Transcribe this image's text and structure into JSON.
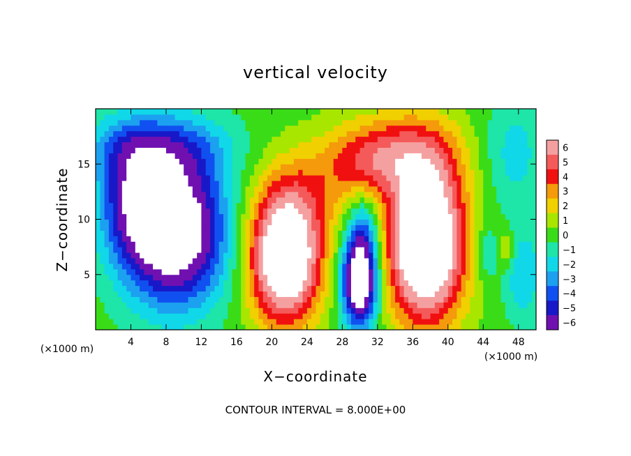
{
  "chart_data": {
    "type": "heatmap",
    "title": "vertical velocity",
    "xlabel": "X−coordinate",
    "ylabel": "Z−coordinate",
    "x_unit_left": "(×1000 m)",
    "x_unit_right": "(×1000 m)",
    "footer": "CONTOUR INTERVAL = 8.000E+00",
    "xlim": [
      0,
      50
    ],
    "ylim": [
      0,
      20
    ],
    "x_ticks": [
      4,
      8,
      12,
      16,
      20,
      24,
      28,
      32,
      36,
      40,
      44,
      48
    ],
    "x_tick_labels": [
      "4",
      "8",
      "12",
      "16",
      "20",
      "24",
      "28",
      "32",
      "36",
      "40",
      "44",
      "48"
    ],
    "y_ticks": [
      5,
      10,
      15
    ],
    "y_tick_labels": [
      "5",
      "10",
      "15"
    ],
    "contour_interval": 8.0,
    "colorbar": {
      "levels": [
        6,
        5,
        4,
        3,
        2,
        1,
        0,
        -1,
        -2,
        -3,
        -4,
        -5,
        -6
      ],
      "labels": [
        "6",
        "5",
        "4",
        "3",
        "2",
        "1",
        "0",
        "−1",
        "−2",
        "−3",
        "−4",
        "−5",
        "−6"
      ],
      "colors": [
        "#f5a0a0",
        "#f55a5a",
        "#f01010",
        "#f59a0a",
        "#f0d000",
        "#a8e600",
        "#3adc18",
        "#1ee5a8",
        "#10d8e8",
        "#1ca0f0",
        "#1050f0",
        "#1818c8",
        "#7010b0"
      ],
      "saturated_high": "#ffffff",
      "saturated_low": "#ffffff",
      "background": "#44dd22"
    },
    "features": [
      {
        "sign": "down",
        "x": 9.0,
        "z": 9.0,
        "sx": 4.0,
        "sz": 4.6,
        "amp": -9.5
      },
      {
        "sign": "down",
        "x": 4.0,
        "z": 12.0,
        "sx": 2.6,
        "sz": 4.0,
        "amp": -4.0
      },
      {
        "sign": "down",
        "x": 7.0,
        "z": 16.5,
        "sx": 5.5,
        "sz": 2.2,
        "amp": -3.6
      },
      {
        "sign": "up",
        "x": 21.5,
        "z": 6.5,
        "sx": 2.8,
        "sz": 4.0,
        "amp": 10.5
      },
      {
        "sign": "up",
        "x": 24.0,
        "z": 12.5,
        "sx": 4.0,
        "sz": 3.0,
        "amp": 2.2
      },
      {
        "sign": "down",
        "x": 30.0,
        "z": 4.6,
        "sx": 1.4,
        "sz": 3.0,
        "amp": -10.0
      },
      {
        "sign": "down",
        "x": 30.5,
        "z": 9.5,
        "sx": 1.2,
        "sz": 2.0,
        "amp": -2.5
      },
      {
        "sign": "up",
        "x": 37.5,
        "z": 8.0,
        "sx": 3.0,
        "sz": 5.0,
        "amp": 11.5
      },
      {
        "sign": "up",
        "x": 34.0,
        "z": 16.0,
        "sx": 5.0,
        "sz": 2.6,
        "amp": 4.0
      },
      {
        "sign": "up",
        "x": 30.5,
        "z": 15.0,
        "sx": 3.0,
        "sz": 2.0,
        "amp": 1.5
      },
      {
        "sign": "down",
        "x": 44.5,
        "z": 7.0,
        "sx": 1.0,
        "sz": 1.6,
        "amp": -2.0
      },
      {
        "sign": "up",
        "x": 46.5,
        "z": 7.3,
        "sx": 0.8,
        "sz": 1.2,
        "amp": 2.0
      },
      {
        "sign": "down",
        "x": 48.5,
        "z": 5.0,
        "sx": 1.5,
        "sz": 3.0,
        "amp": -2.5
      },
      {
        "sign": "down",
        "x": 47.5,
        "z": 16.0,
        "sx": 2.5,
        "sz": 3.5,
        "amp": -2.0
      }
    ]
  }
}
